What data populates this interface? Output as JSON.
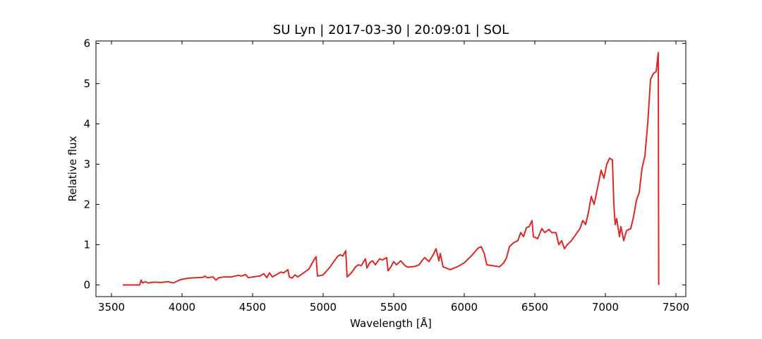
{
  "chart_data": {
    "type": "line",
    "title": "SU Lyn | 2017-03-30 | 20:09:01 | SOL",
    "x_label": "Wavelength [Å]",
    "y_label": "Relative flux",
    "xlim": [
      3390,
      7570
    ],
    "ylim": [
      -0.29,
      6.06
    ],
    "xticks": [
      3500,
      4000,
      4500,
      5000,
      5500,
      6000,
      6500,
      7000,
      7500
    ],
    "yticks": [
      0,
      1,
      2,
      3,
      4,
      5,
      6
    ],
    "series": [
      {
        "color": "#d62a2a",
        "x": [
          3580,
          3700,
          3710,
          3720,
          3740,
          3760,
          3800,
          3850,
          3900,
          3940,
          3980,
          4000,
          4050,
          4100,
          4150,
          4160,
          4180,
          4220,
          4240,
          4260,
          4300,
          4350,
          4400,
          4420,
          4450,
          4470,
          4500,
          4550,
          4580,
          4600,
          4620,
          4640,
          4700,
          4720,
          4750,
          4760,
          4780,
          4800,
          4820,
          4850,
          4900,
          4940,
          4950,
          4960,
          5000,
          5050,
          5100,
          5120,
          5140,
          5160,
          5170,
          5200,
          5230,
          5250,
          5270,
          5300,
          5310,
          5330,
          5350,
          5370,
          5400,
          5420,
          5450,
          5460,
          5480,
          5500,
          5520,
          5550,
          5580,
          5600,
          5650,
          5680,
          5700,
          5720,
          5750,
          5780,
          5800,
          5820,
          5830,
          5850,
          5900,
          5950,
          6000,
          6050,
          6100,
          6120,
          6140,
          6160,
          6200,
          6250,
          6280,
          6300,
          6320,
          6350,
          6380,
          6400,
          6420,
          6440,
          6460,
          6480,
          6490,
          6520,
          6550,
          6570,
          6600,
          6620,
          6650,
          6670,
          6690,
          6710,
          6730,
          6760,
          6780,
          6800,
          6820,
          6840,
          6860,
          6880,
          6900,
          6920,
          6950,
          6970,
          6990,
          7010,
          7030,
          7050,
          7060,
          7070,
          7080,
          7100,
          7110,
          7130,
          7150,
          7180,
          7200,
          7220,
          7240,
          7260,
          7280,
          7300,
          7320,
          7340,
          7360,
          7375,
          7378
        ],
        "values": [
          0,
          0,
          0.12,
          0.05,
          0.08,
          0.05,
          0.07,
          0.06,
          0.08,
          0.05,
          0.12,
          0.14,
          0.17,
          0.18,
          0.19,
          0.22,
          0.18,
          0.2,
          0.12,
          0.18,
          0.2,
          0.2,
          0.24,
          0.22,
          0.26,
          0.18,
          0.2,
          0.22,
          0.28,
          0.18,
          0.3,
          0.2,
          0.32,
          0.3,
          0.38,
          0.2,
          0.17,
          0.25,
          0.2,
          0.27,
          0.4,
          0.65,
          0.7,
          0.22,
          0.25,
          0.45,
          0.7,
          0.75,
          0.72,
          0.85,
          0.2,
          0.3,
          0.45,
          0.5,
          0.48,
          0.65,
          0.42,
          0.55,
          0.6,
          0.5,
          0.65,
          0.62,
          0.68,
          0.35,
          0.45,
          0.58,
          0.5,
          0.6,
          0.48,
          0.44,
          0.46,
          0.5,
          0.6,
          0.68,
          0.58,
          0.75,
          0.9,
          0.6,
          0.78,
          0.45,
          0.38,
          0.45,
          0.55,
          0.72,
          0.92,
          0.95,
          0.8,
          0.5,
          0.48,
          0.45,
          0.55,
          0.68,
          0.95,
          1.05,
          1.1,
          1.3,
          1.2,
          1.42,
          1.45,
          1.6,
          1.2,
          1.15,
          1.4,
          1.3,
          1.38,
          1.3,
          1.3,
          1.0,
          1.1,
          0.9,
          1.0,
          1.1,
          1.2,
          1.3,
          1.4,
          1.6,
          1.5,
          1.8,
          2.2,
          2.0,
          2.5,
          2.85,
          2.65,
          3.0,
          3.15,
          3.1,
          2.0,
          1.5,
          1.65,
          1.2,
          1.45,
          1.1,
          1.35,
          1.4,
          1.7,
          2.1,
          2.3,
          2.9,
          3.2,
          4.0,
          5.1,
          5.25,
          5.3,
          5.77,
          0
        ]
      }
    ]
  }
}
